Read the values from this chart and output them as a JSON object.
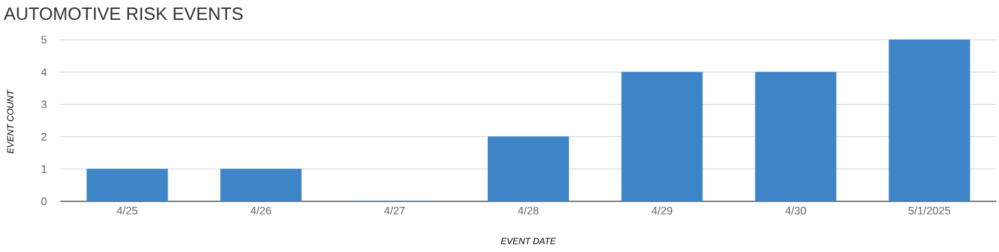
{
  "chart_data": {
    "type": "bar",
    "title": "AUTOMOTIVE RISK EVENTS",
    "xlabel": "EVENT DATE",
    "ylabel": "EVENT COUNT",
    "categories": [
      "4/25",
      "4/26",
      "4/27",
      "4/28",
      "4/29",
      "4/30",
      "5/1/2025"
    ],
    "values": [
      1,
      1,
      0,
      2,
      4,
      4,
      5
    ],
    "color": "#3d85c6",
    "ylim": [
      0,
      5
    ],
    "yticks": [
      0,
      1,
      2,
      3,
      4,
      5
    ],
    "grid": "y"
  }
}
